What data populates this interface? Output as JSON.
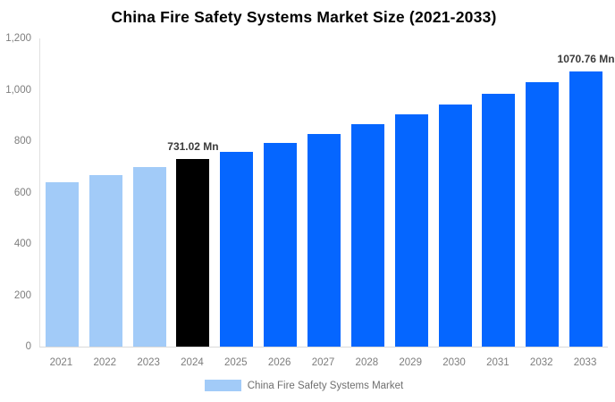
{
  "chart_data": {
    "type": "bar",
    "title": "China Fire Safety Systems Market Size (2021-2033)",
    "unit": "Mn",
    "categories": [
      "2021",
      "2022",
      "2023",
      "2024",
      "2025",
      "2026",
      "2027",
      "2028",
      "2029",
      "2030",
      "2031",
      "2032",
      "2033"
    ],
    "series": [
      {
        "name": "China Fire Safety Systems Market",
        "values": [
          641,
          669,
          698,
          731.02,
          760,
          794,
          829,
          866,
          903,
          942,
          983,
          1028,
          1070.76
        ]
      }
    ],
    "bar_colors": [
      "#a2cbf8",
      "#a2cbf8",
      "#a2cbf8",
      "#000000",
      "#0566ff",
      "#0566ff",
      "#0566ff",
      "#0566ff",
      "#0566ff",
      "#0566ff",
      "#0566ff",
      "#0566ff",
      "#0566ff"
    ],
    "data_labels": [
      {
        "category": "2024",
        "text": "731.02 Mn"
      },
      {
        "category": "2033",
        "text": "1070.76 Mn"
      }
    ],
    "y_ticks": [
      {
        "value": 0,
        "label": "0"
      },
      {
        "value": 200,
        "label": "200"
      },
      {
        "value": 400,
        "label": "400"
      },
      {
        "value": 600,
        "label": "600"
      },
      {
        "value": 800,
        "label": "800"
      },
      {
        "value": 1000,
        "label": "1,000"
      },
      {
        "value": 1200,
        "label": "1,200"
      }
    ],
    "ylim": [
      0,
      1200
    ],
    "xlabel": "",
    "ylabel": "",
    "grid": false,
    "legend_position": "bottom"
  },
  "legend": {
    "label": "China Fire Safety Systems Market",
    "swatch_color": "#a2cbf8"
  },
  "colors": {
    "historical_bar": "#a2cbf8",
    "base_year_bar": "#000000",
    "forecast_bar": "#0566ff",
    "axis_line": "#e0e0e0",
    "tick_text": "#7d7d7d",
    "data_label_text": "#3a3a3a",
    "title_text": "#000000"
  }
}
